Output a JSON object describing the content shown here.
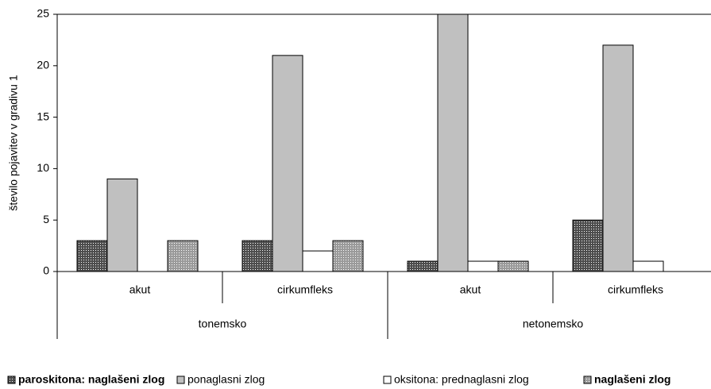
{
  "chart_data": {
    "type": "bar",
    "y_label": "število pojavitev v gradivu 1",
    "categories": [
      "akut",
      "cirkumfleks",
      "akut",
      "cirkumfleks"
    ],
    "groups": [
      "tonemsko",
      "netonemsko"
    ],
    "series": [
      {
        "name": "paroskitona: naglašeni zlog",
        "color": "#4d4d4d",
        "values": [
          3,
          3,
          1,
          5
        ]
      },
      {
        "name": "ponaglasni zlog",
        "color": "#c0c0c0",
        "values": [
          9,
          21,
          25,
          22
        ]
      },
      {
        "name": "oksitona: prednaglasni zlog",
        "color": "#ffffff",
        "values": [
          0,
          2,
          1,
          1
        ]
      },
      {
        "name": "naglašeni zlog",
        "color": "#9a9a9a",
        "values": [
          3,
          3,
          1,
          0
        ]
      }
    ],
    "ylim": [
      0,
      25
    ],
    "yticks": [
      0,
      5,
      10,
      15,
      20,
      25
    ]
  }
}
